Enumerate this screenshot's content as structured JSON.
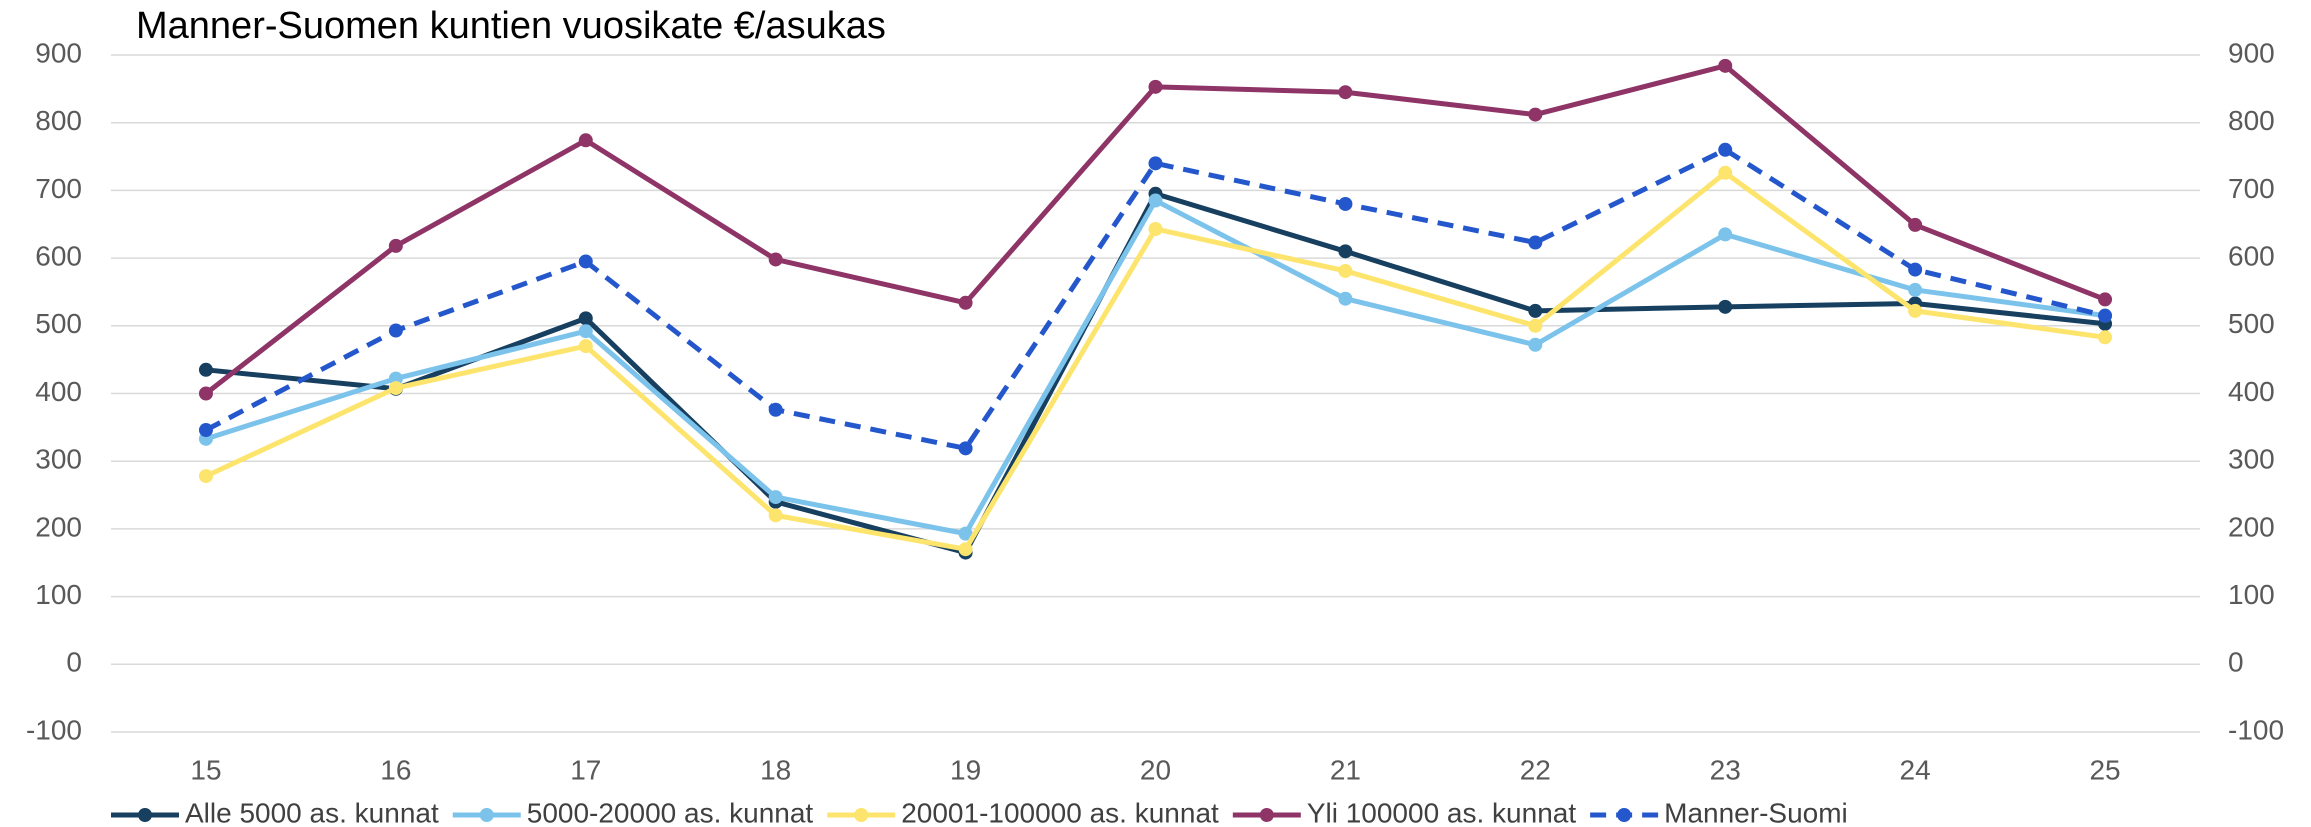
{
  "chart_data": {
    "type": "line",
    "title": "Manner-Suomen kuntien vuosikate €/asukas",
    "categories": [
      "15",
      "16",
      "17",
      "18",
      "19",
      "20",
      "21",
      "22",
      "23",
      "24",
      "25"
    ],
    "series": [
      {
        "name": "Alle 5000 as. kunnat",
        "color": "#173f5f",
        "dash": false,
        "values": [
          435,
          407,
          511,
          240,
          165,
          695,
          610,
          522,
          528,
          533,
          503
        ]
      },
      {
        "name": "5000-20000 as. kunnat",
        "color": "#7cc3ec",
        "dash": false,
        "values": [
          333,
          422,
          492,
          247,
          193,
          685,
          540,
          472,
          635,
          553,
          515
        ]
      },
      {
        "name": "20001-100000 as. kunnat",
        "color": "#fde46c",
        "dash": false,
        "values": [
          278,
          408,
          470,
          220,
          170,
          643,
          581,
          500,
          726,
          522,
          483
        ]
      },
      {
        "name": "Yli 100000 as. kunnat",
        "color": "#8e3466",
        "dash": false,
        "values": [
          400,
          618,
          774,
          598,
          534,
          853,
          845,
          812,
          884,
          649,
          539
        ]
      },
      {
        "name": "Manner-Suomi",
        "color": "#2457cc",
        "dash": true,
        "values": [
          346,
          493,
          595,
          376,
          319,
          740,
          680,
          623,
          760,
          583,
          515
        ]
      }
    ],
    "ylim": [
      -100,
      900
    ],
    "yticks": [
      -100,
      0,
      100,
      200,
      300,
      400,
      500,
      600,
      700,
      800,
      900
    ],
    "y2lim": [
      -100,
      900
    ],
    "y2ticks": [
      -100,
      0,
      100,
      200,
      300,
      400,
      500,
      600,
      700,
      800,
      900
    ],
    "grid": true,
    "legend": "bottom"
  }
}
